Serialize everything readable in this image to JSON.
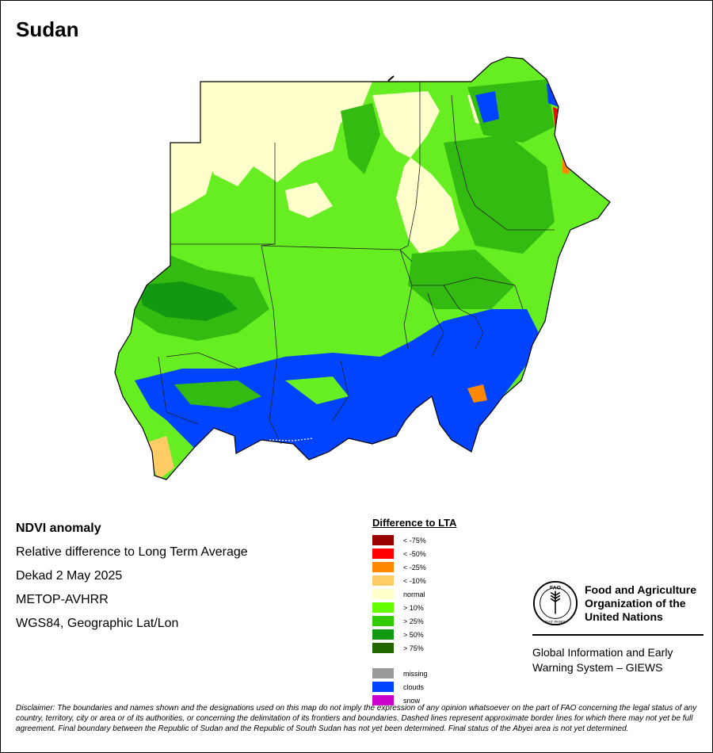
{
  "title": "Sudan",
  "info": {
    "heading": "NDVI anomaly",
    "line1": "Relative difference to Long Term Average",
    "line2": "Dekad 2 May 2025",
    "line3": "METOP-AVHRR",
    "line4": "WGS84, Geographic Lat/Lon"
  },
  "legend": {
    "heading": "Difference to LTA",
    "classes": [
      {
        "label": "< -75%",
        "color": "#990000"
      },
      {
        "label": "< -50%",
        "color": "#ff0000"
      },
      {
        "label": "< -25%",
        "color": "#ff8800"
      },
      {
        "label": "< -10%",
        "color": "#ffcc66"
      },
      {
        "label": "normal",
        "color": "#ffffcc"
      },
      {
        "label": "> 10%",
        "color": "#66ff00"
      },
      {
        "label": "> 25%",
        "color": "#33cc00"
      },
      {
        "label": "> 50%",
        "color": "#119911"
      },
      {
        "label": "> 75%",
        "color": "#226600"
      }
    ],
    "extra": [
      {
        "label": "missing",
        "color": "#999999"
      },
      {
        "label": "clouds",
        "color": "#0044ff"
      },
      {
        "label": "snow",
        "color": "#cc00cc"
      }
    ]
  },
  "org": {
    "name_line1": "Food and Agriculture",
    "name_line2": "Organization of the",
    "name_line3": "United Nations",
    "emblem_text": "FAO",
    "emblem_motto": "FIAT PANIS",
    "system_line1": "Global Information and Early",
    "system_line2": "Warning System – GIEWS"
  },
  "disclaimer": "Disclaimer: The boundaries and names shown and the designations used on this map do not imply the expression of any opinion whatsoever on the part of FAO concerning the legal status of any country, territory, city or area or of its authorities, or concerning the delimitation of its frontiers and boundaries. Dashed lines represent approximate border lines for which there may not yet be full agreement.  Final boundary between the Republic of Sudan and the Republic of South Sudan has not yet been determined. Final status of the Abyei area is not yet determined."
}
